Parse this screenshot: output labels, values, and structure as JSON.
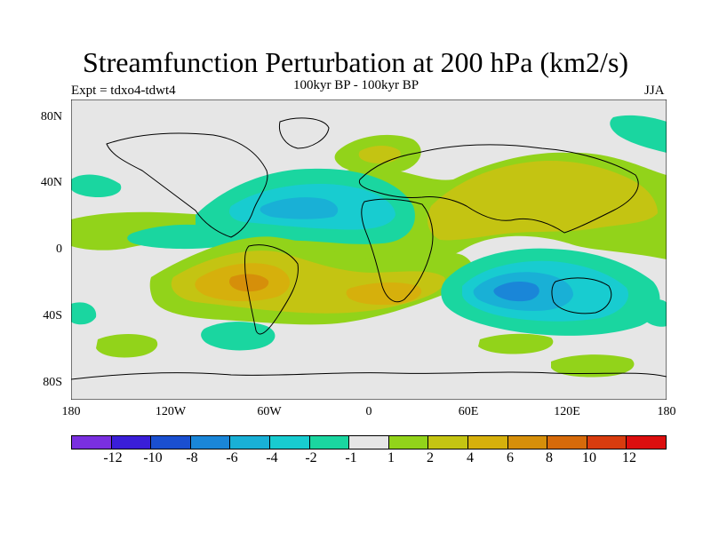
{
  "title": "Streamfunction Perturbation at 200 hPa (km2/s)",
  "subtitle": "100kyr BP - 100kyr BP",
  "left_label": "Expt = tdxo4-tdwt4",
  "right_label": "JJA",
  "y_ticks": [
    "80N",
    "40N",
    "0",
    "40S",
    "80S"
  ],
  "x_ticks": [
    "180",
    "120W",
    "60W",
    "0",
    "60E",
    "120E",
    "180"
  ],
  "colorbar": {
    "colors": [
      "#7a2fe0",
      "#3a1ed8",
      "#1a4fd0",
      "#1a86d8",
      "#19b0d6",
      "#18ccd0",
      "#1ad6a0",
      "#e6e6e6",
      "#92d31a",
      "#c4c412",
      "#d6b00c",
      "#d68f0a",
      "#d66a0a",
      "#d83c0e",
      "#dc0e0e"
    ],
    "labels": [
      "-12",
      "-10",
      "-8",
      "-6",
      "-4",
      "-2",
      "-1",
      "1",
      "2",
      "4",
      "6",
      "8",
      "10",
      "12"
    ]
  }
}
